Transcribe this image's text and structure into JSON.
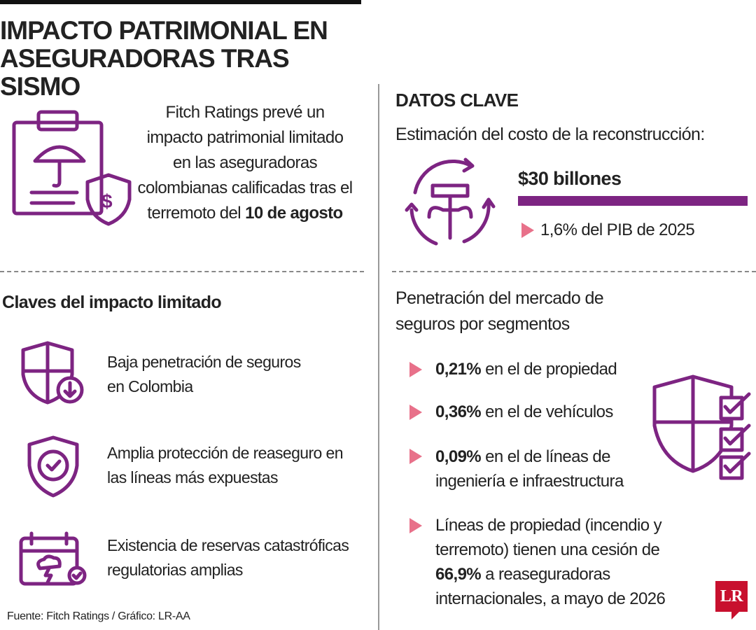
{
  "header": {
    "title": "IMPACTO PATRIMONIAL EN ASEGURADORAS TRAS SISMO"
  },
  "intro": {
    "text": "Fitch Ratings prevé un impacto patrimonial limitado en las aseguradoras colombianas calificadas tras el terremoto del",
    "bold": "10 de agosto"
  },
  "claves": {
    "title": "Claves del impacto limitado",
    "items": [
      "Baja penetración de seguros en Colombia",
      "Amplia protección de reaseguro en las líneas más expuestas",
      "Existencia de reservas catastróficas regulatorias amplias"
    ]
  },
  "datos": {
    "title": "DATOS CLAVE",
    "subtitle": "Estimación del costo de la reconstrucción:",
    "amount": "$30 billones",
    "note": "1,6% del PIB de 2025"
  },
  "penetracion": {
    "title": "Penetración del mercado de seguros por segmentos",
    "items": [
      {
        "bold": "0,21%",
        "text": "en el de propiedad"
      },
      {
        "bold": "0,36%",
        "text": "en el de vehículos"
      },
      {
        "bold": "0,09%",
        "text": "en el de líneas de ingeniería e infraestructura"
      }
    ],
    "last": {
      "before": "Líneas de propiedad (incendio y terremoto) tienen una cesión de",
      "bold": "66,9%",
      "after": "a reaseguradoras internacionales, a mayo de 2026"
    }
  },
  "source": "Fuente: Fitch Ratings / Gráfico: LR-AA",
  "logo": "LR"
}
